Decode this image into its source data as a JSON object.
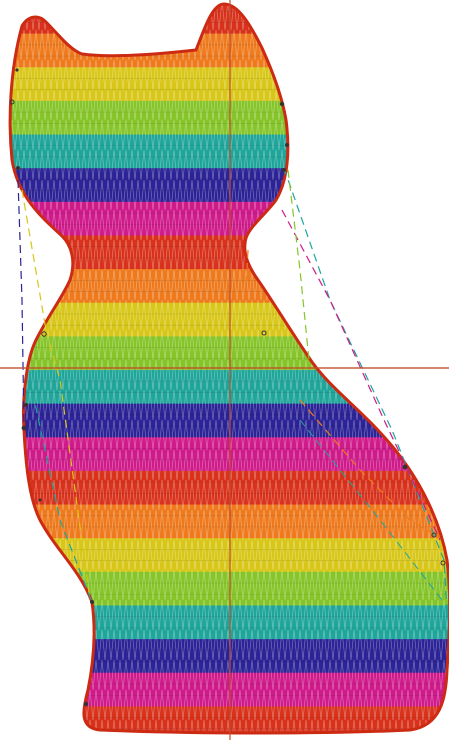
{
  "design": {
    "name": "",
    "stripe_colors": [
      "#d9321c",
      "#ee7a1d",
      "#d8c719",
      "#86c52a",
      "#1fa59a",
      "#2b2396",
      "#cf1a8a"
    ],
    "stripe_sequence": [
      "red",
      "orange",
      "yellow",
      "green",
      "teal",
      "indigo",
      "magenta",
      "red",
      "orange",
      "yellow",
      "green",
      "teal",
      "indigo",
      "magenta",
      "red",
      "orange",
      "yellow",
      "green",
      "teal",
      "indigo",
      "magenta",
      "red"
    ],
    "outline_color": "#cc2a12",
    "crosshair_color": "#c24d2a",
    "stitch_style": "satin-zigzag",
    "guide_lines": [
      {
        "color": "#2b2396",
        "style": "dashed"
      },
      {
        "color": "#d8c719",
        "style": "dashed"
      },
      {
        "color": "#1fa59a",
        "style": "dashed"
      },
      {
        "color": "#cf1a8a",
        "style": "dashed"
      },
      {
        "color": "#86c52a",
        "style": "dashed"
      },
      {
        "color": "#ee7a1d",
        "style": "dashed"
      }
    ]
  }
}
